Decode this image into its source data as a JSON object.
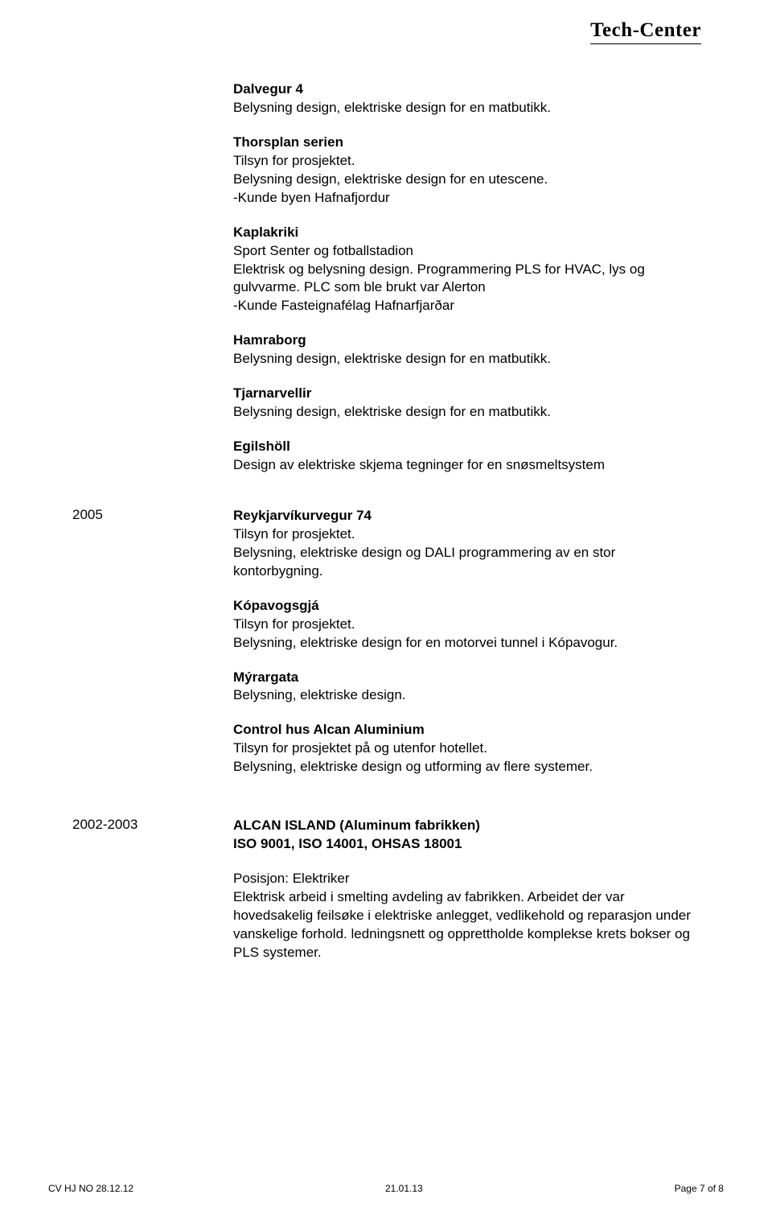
{
  "header": {
    "title": "Tech-Center"
  },
  "entries": [
    {
      "year": "",
      "sections": [
        {
          "title": "Dalvegur 4",
          "lines": [
            "Belysning design, elektriske design for en matbutikk."
          ]
        },
        {
          "title": "Thorsplan serien",
          "lines": [
            "Tilsyn for prosjektet.",
            "Belysning design, elektriske design for en utescene.",
            "-Kunde  byen Hafnafjordur"
          ]
        },
        {
          "title": "Kaplakriki",
          "lines": [
            "Sport Senter og fotballstadion",
            "Elektrisk og belysning design. Programmering PLS for HVAC, lys og gulvvarme. PLC som ble brukt var Alerton",
            "-Kunde Fasteignafélag Hafnarfjarðar"
          ]
        },
        {
          "title": "Hamraborg",
          "lines": [
            "Belysning design, elektriske design for en matbutikk."
          ]
        },
        {
          "title": "Tjarnarvellir",
          "lines": [
            "Belysning design, elektriske design for en matbutikk."
          ]
        },
        {
          "title": "Egilshöll",
          "lines": [
            "Design av elektriske skjema tegninger for en snøsmeltsystem"
          ]
        }
      ]
    },
    {
      "year": "2005",
      "sections": [
        {
          "title": "Reykjarvíkurvegur 74",
          "lines": [
            "Tilsyn for prosjektet.",
            "Belysning, elektriske design og DALI programmering av en stor kontorbygning."
          ]
        },
        {
          "title": "Kópavogsgjá",
          "lines": [
            "Tilsyn for prosjektet.",
            "Belysning, elektriske design for en motorvei tunnel i Kópavogur."
          ]
        },
        {
          "title": "Mýrargata",
          "lines": [
            "Belysning, elektriske design."
          ]
        },
        {
          "title": "Control hus Alcan Aluminium",
          "lines": [
            "Tilsyn for prosjektet på og utenfor hotellet.",
            "Belysning, elektriske design og utforming av flere systemer."
          ]
        }
      ]
    },
    {
      "year": "2002-2003",
      "gapBefore": true,
      "sections": [
        {
          "title": "ALCAN ISLAND (Aluminum fabrikken)",
          "boldExtra": "ISO 9001, ISO 14001, OHSAS 18001",
          "lines": []
        },
        {
          "title": "",
          "lines": [
            "Posisjon: Elektriker",
            "Elektrisk arbeid i smelting avdeling av fabrikken. Arbeidet der var hovedsakelig feilsøke i elektriske anlegget, vedlikehold og reparasjon under vanskelige forhold. ledningsnett og opprettholde komplekse krets bokser og PLS systemer."
          ]
        }
      ]
    }
  ],
  "footer": {
    "left": "CV HJ NO 28.12.12",
    "center": "21.01.13",
    "right": "Page 7 of 8"
  }
}
